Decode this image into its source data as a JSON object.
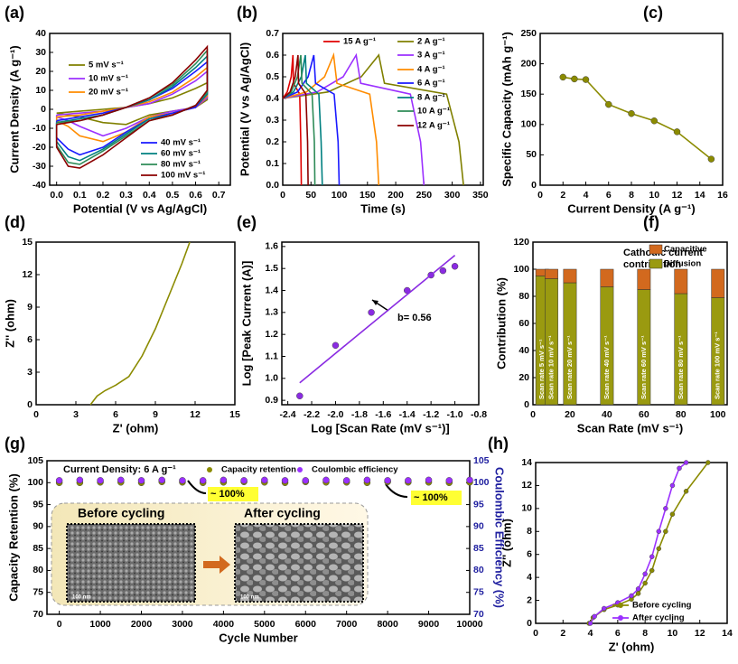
{
  "chart_data": [
    {
      "label": "(a)",
      "type": "line",
      "xlabel": "Potential (V vs Ag/AgCl)",
      "ylabel": "Current Density (A g⁻¹)",
      "xlim": [
        -0.03,
        0.75
      ],
      "xticks": [
        {
          "value": 0,
          "label": "0.0"
        },
        0.1,
        0.2,
        0.3,
        0.4,
        0.5,
        0.6,
        0.7
      ],
      "ylim": [
        -40,
        40
      ],
      "yticks": [
        -40,
        -30,
        -20,
        -10,
        0,
        10,
        20,
        30,
        40
      ],
      "series": [
        {
          "name": "5 mV s⁻¹",
          "color": "#808000",
          "x": [
            0.0,
            0.1,
            0.2,
            0.3,
            0.4,
            0.5,
            0.6,
            0.65,
            0.65,
            0.6,
            0.5,
            0.4,
            0.3,
            0.2,
            0.1,
            0.05,
            0.0,
            0.0
          ],
          "values": [
            -2,
            -1,
            0,
            1,
            3,
            6,
            11,
            14,
            5,
            1,
            -1,
            -3,
            -8,
            -7,
            -4,
            -3,
            -2,
            -2
          ]
        },
        {
          "name": "10 mV s⁻¹",
          "color": "#9b30ff",
          "x": [
            0.0,
            0.1,
            0.2,
            0.3,
            0.4,
            0.5,
            0.6,
            0.65,
            0.65,
            0.6,
            0.5,
            0.4,
            0.3,
            0.2,
            0.1,
            0.05,
            0.0,
            0.0
          ],
          "values": [
            -3,
            -2,
            -1,
            1,
            3,
            8,
            15,
            20,
            6,
            1,
            -1,
            -4,
            -10,
            -14,
            -9,
            -6,
            -4,
            -3
          ]
        },
        {
          "name": "20 mV s⁻¹",
          "color": "#ff8c00",
          "x": [
            0.0,
            0.1,
            0.2,
            0.3,
            0.4,
            0.5,
            0.6,
            0.65,
            0.65,
            0.6,
            0.5,
            0.4,
            0.3,
            0.2,
            0.1,
            0.05,
            0.0,
            0.0
          ],
          "values": [
            -4,
            -3,
            -1,
            1,
            4,
            9,
            17,
            22,
            7,
            1,
            -2,
            -4,
            -12,
            -17,
            -14,
            -9,
            -6,
            -4
          ]
        },
        {
          "name": "40 mV s⁻¹",
          "color": "#1a1aff",
          "x": [
            0.0,
            0.1,
            0.2,
            0.3,
            0.4,
            0.5,
            0.6,
            0.65,
            0.65,
            0.6,
            0.5,
            0.4,
            0.3,
            0.2,
            0.1,
            0.05,
            0.0,
            0.0
          ],
          "values": [
            -6,
            -4,
            -2,
            1,
            5,
            11,
            20,
            25,
            8,
            1,
            -2,
            -5,
            -12,
            -20,
            -24,
            -21,
            -15,
            -6
          ]
        },
        {
          "name": "60 mV s⁻¹",
          "color": "#008080",
          "x": [
            0.0,
            0.1,
            0.2,
            0.3,
            0.4,
            0.5,
            0.6,
            0.65,
            0.65,
            0.6,
            0.5,
            0.4,
            0.3,
            0.2,
            0.1,
            0.05,
            0.0,
            0.0
          ],
          "values": [
            -7,
            -5,
            -3,
            1,
            5,
            12,
            22,
            28,
            8,
            2,
            -3,
            -5,
            -13,
            -21,
            -27,
            -25,
            -17,
            -7
          ]
        },
        {
          "name": "80 mV s⁻¹",
          "color": "#2e8b57",
          "x": [
            0.0,
            0.1,
            0.2,
            0.3,
            0.4,
            0.5,
            0.6,
            0.65,
            0.65,
            0.6,
            0.5,
            0.4,
            0.3,
            0.2,
            0.1,
            0.05,
            0.0,
            0.0
          ],
          "values": [
            -7,
            -6,
            -3,
            1,
            6,
            13,
            24,
            31,
            9,
            2,
            -3,
            -6,
            -14,
            -22,
            -29,
            -28,
            -19,
            -7
          ]
        },
        {
          "name": "100 mV s⁻¹",
          "color": "#8b0000",
          "x": [
            0.0,
            0.1,
            0.2,
            0.3,
            0.4,
            0.5,
            0.6,
            0.65,
            0.65,
            0.6,
            0.5,
            0.4,
            0.3,
            0.2,
            0.1,
            0.05,
            0.0,
            0.0
          ],
          "values": [
            -8,
            -6,
            -3,
            1,
            6,
            14,
            26,
            33,
            10,
            2,
            -3,
            -6,
            -15,
            -24,
            -31,
            -30,
            -20,
            -8
          ]
        }
      ]
    },
    {
      "label": "(b)",
      "type": "line",
      "xlabel": "Time (s)",
      "ylabel": "Potential (V vs Ag/AgCl)",
      "xlim": [
        0,
        355
      ],
      "xticks": [
        0,
        50,
        100,
        150,
        200,
        250,
        300,
        350
      ],
      "ylim": [
        0,
        0.7
      ],
      "yticks": [
        {
          "value": 0,
          "label": "0.0"
        },
        0.1,
        0.2,
        0.3,
        0.4,
        0.5,
        0.6,
        0.7
      ],
      "series": [
        {
          "name": "15 A g⁻¹",
          "color": "#e00000",
          "x": [
            0,
            8,
            15,
            18,
            19,
            30,
            32,
            33
          ],
          "values": [
            0.4,
            0.43,
            0.5,
            0.6,
            0.47,
            0.42,
            0.2,
            0.0
          ]
        },
        {
          "name": "2 A g⁻¹",
          "color": "#808000",
          "x": [
            0,
            80,
            139,
            170,
            180,
            290,
            312,
            320
          ],
          "values": [
            0.4,
            0.43,
            0.5,
            0.6,
            0.47,
            0.42,
            0.2,
            0.0
          ]
        },
        {
          "name": "3 A g⁻¹",
          "color": "#9b30ff",
          "x": [
            0,
            61,
            107,
            130,
            138,
            226,
            244,
            250
          ],
          "values": [
            0.4,
            0.43,
            0.5,
            0.6,
            0.47,
            0.42,
            0.2,
            0.0
          ]
        },
        {
          "name": "4 A g⁻¹",
          "color": "#ff8c00",
          "x": [
            0,
            42,
            74,
            90,
            96,
            154,
            166,
            170
          ],
          "values": [
            0.4,
            0.43,
            0.5,
            0.6,
            0.47,
            0.42,
            0.2,
            0.0
          ]
        },
        {
          "name": "6 A g⁻¹",
          "color": "#1a1aff",
          "x": [
            0,
            26,
            45,
            55,
            58,
            91,
            98,
            100
          ],
          "values": [
            0.4,
            0.43,
            0.5,
            0.6,
            0.47,
            0.42,
            0.2,
            0.0
          ]
        },
        {
          "name": "8 A g⁻¹",
          "color": "#008080",
          "x": [
            0,
            19,
            33,
            40,
            42,
            64,
            68,
            70
          ],
          "values": [
            0.4,
            0.43,
            0.5,
            0.6,
            0.47,
            0.42,
            0.2,
            0.0
          ]
        },
        {
          "name": "10 A g⁻¹",
          "color": "#2e8b57",
          "x": [
            0,
            15,
            26,
            32,
            34,
            52,
            56,
            57
          ],
          "values": [
            0.4,
            0.43,
            0.5,
            0.6,
            0.47,
            0.42,
            0.2,
            0.0
          ]
        },
        {
          "name": "12 A g⁻¹",
          "color": "#8b0000",
          "x": [
            0,
            13,
            22,
            27,
            28,
            41,
            44,
            45
          ],
          "values": [
            0.4,
            0.43,
            0.5,
            0.6,
            0.47,
            0.42,
            0.2,
            0.0
          ]
        }
      ]
    },
    {
      "label": "(c)",
      "type": "line",
      "xlabel": "Current Density (A g⁻¹)",
      "ylabel": "Specific Capacity (mAh g⁻¹)",
      "xlim": [
        0,
        16
      ],
      "xticks": [
        0,
        2,
        4,
        6,
        8,
        10,
        12,
        14,
        16
      ],
      "ylim": [
        0,
        250
      ],
      "yticks": [
        0,
        50,
        100,
        150,
        200,
        250
      ],
      "series": [
        {
          "color": "#8b8b00",
          "mode": "lines+markers",
          "x": [
            2,
            3,
            4,
            6,
            8,
            10,
            12,
            15
          ],
          "values": [
            178,
            175,
            174,
            133,
            118,
            106,
            88,
            43
          ]
        }
      ]
    },
    {
      "label": "(d)",
      "type": "line",
      "xlabel": "Z' (ohm)",
      "ylabel": "Z'' (ohm)",
      "xlim": [
        0,
        15
      ],
      "xticks": [
        0,
        3,
        6,
        9,
        12,
        15
      ],
      "ylim": [
        0,
        15
      ],
      "yticks": [
        0,
        3,
        6,
        9,
        12,
        15
      ],
      "series": [
        {
          "color": "#8b8b00",
          "x": [
            4.1,
            4.6,
            5.2,
            6,
            7,
            8,
            9,
            10,
            11,
            11.6
          ],
          "values": [
            0,
            0.8,
            1.3,
            1.8,
            2.6,
            4.5,
            7,
            10,
            13,
            15
          ]
        }
      ]
    },
    {
      "label": "(e)",
      "type": "scatter",
      "xlabel": "Log [Scan Rate (mV s⁻¹)]",
      "ylabel": "Log [Peak Current (A)]",
      "xlim": [
        -2.45,
        -0.8
      ],
      "xticks": [
        -2.4,
        -2.2,
        {
          "value": -2,
          "label": "-2.0"
        },
        -1.8,
        -1.6,
        -1.4,
        -1.2,
        {
          "value": -1,
          "label": "-1.0"
        },
        -0.8
      ],
      "ylim": [
        0.88,
        1.62
      ],
      "yticks": [
        0.9,
        {
          "value": 1,
          "label": "1.0"
        },
        1.1,
        1.2,
        1.3,
        1.4,
        1.5,
        1.6
      ],
      "annotations": [
        "b= 0.56"
      ],
      "series": [
        {
          "color": "#8a2be2",
          "mode": "markers",
          "x": [
            -2.3,
            -2.0,
            -1.7,
            -1.4,
            -1.2,
            -1.1,
            -1.0
          ],
          "values": [
            0.92,
            1.15,
            1.3,
            1.4,
            1.47,
            1.49,
            1.51
          ]
        },
        {
          "color": "#8a2be2",
          "mode": "lines",
          "x": [
            -2.3,
            -1.0
          ],
          "values": [
            0.98,
            1.56
          ]
        }
      ]
    },
    {
      "label": "(f)",
      "type": "bar",
      "stacked": true,
      "xlabel": "Scan Rate (mV s⁻¹)",
      "ylabel": "Contribution (%)",
      "xlim": [
        0,
        105
      ],
      "xticks": [
        0,
        20,
        40,
        60,
        80,
        100
      ],
      "ylim": [
        0,
        120
      ],
      "yticks": [
        0,
        20,
        40,
        60,
        80,
        100,
        120
      ],
      "annotations": [
        "Cathodic current",
        "contribution"
      ],
      "x": [
        5,
        10,
        20,
        40,
        60,
        80,
        100
      ],
      "categories": [
        "Scan rate 5 mV s⁻¹",
        "Scan rate 10 mV s⁻¹",
        "Scan rate 20 mV s⁻¹",
        "Scan rate 40 mV s⁻¹",
        "Scan rate 60 mV s⁻¹",
        "Scan rate 80 mV s⁻¹",
        "Scan rate 100 mV s⁻¹"
      ],
      "series": [
        {
          "name": "Diffusion",
          "color": "#9a9a10",
          "values": [
            95,
            93,
            90,
            87,
            85,
            82,
            79
          ]
        },
        {
          "name": "Capacitive",
          "color": "#d2691e",
          "values": [
            5,
            7,
            10,
            13,
            15,
            18,
            21
          ]
        }
      ]
    },
    {
      "label": "(g)",
      "type": "line",
      "xlabel": "Cycle Number",
      "ylabel": "Capacity Retention (%)",
      "y2label": "Coulombic Efficiency (%)",
      "xlim": [
        -300,
        10000
      ],
      "xticks": [
        0,
        1000,
        2000,
        3000,
        4000,
        5000,
        6000,
        7000,
        8000,
        9000,
        10000
      ],
      "ylim": [
        70,
        105
      ],
      "yticks": [
        70,
        75,
        80,
        85,
        90,
        95,
        100,
        105
      ],
      "y2lim": [
        70,
        105
      ],
      "y2ticks": [
        70,
        75,
        80,
        85,
        90,
        95,
        100,
        105
      ],
      "annotations": [
        "Current  Density: 6 A g⁻¹",
        "~ 100%",
        "~ 100%",
        "Before cycling",
        "After cycling",
        "100 nm",
        "100 nm"
      ],
      "series": [
        {
          "name": "Capacity retention",
          "color": "#8b8b00",
          "mode": "markers",
          "x": [
            0,
            500,
            1000,
            1500,
            2000,
            2500,
            3000,
            3500,
            4000,
            4500,
            5000,
            5500,
            6000,
            6500,
            7000,
            7500,
            8000,
            8500,
            9000,
            9500,
            10000
          ],
          "values": [
            100,
            100,
            100.1,
            100.1,
            100,
            100.2,
            100.1,
            100,
            100.1,
            100.2,
            100.1,
            100,
            100.2,
            100.1,
            100.1,
            100,
            100.2,
            100.1,
            100.1,
            100,
            100.1
          ]
        },
        {
          "name": "Coulombic efficiency",
          "color": "#9b30ff",
          "mode": "markers",
          "axis": "y2",
          "x": [
            0,
            500,
            1000,
            1500,
            2000,
            2500,
            3000,
            3500,
            4000,
            4500,
            5000,
            5500,
            6000,
            6500,
            7000,
            7500,
            8000,
            8500,
            9000,
            9500,
            10000
          ],
          "values": [
            100.5,
            100.6,
            100.5,
            100.6,
            100.5,
            100.6,
            100.5,
            100.5,
            100.6,
            100.5,
            100.6,
            100.5,
            100.5,
            100.6,
            100.5,
            100.6,
            100.5,
            100.5,
            100.6,
            100.5,
            100.6
          ]
        }
      ]
    },
    {
      "label": "(h)",
      "type": "line",
      "xlabel": "Z' (ohm)",
      "ylabel": "Z'' (ohm)",
      "xlim": [
        0,
        14
      ],
      "xticks": [
        0,
        2,
        4,
        6,
        8,
        10,
        12,
        14
      ],
      "ylim": [
        0,
        14
      ],
      "yticks": [
        0,
        2,
        4,
        6,
        8,
        10,
        12,
        14
      ],
      "series": [
        {
          "name": "Before cycling",
          "color": "#8b8b00",
          "mode": "lines+markers",
          "x": [
            3.9,
            4.2,
            5,
            6,
            7,
            7.5,
            8,
            8.5,
            9,
            9.5,
            10,
            11,
            12.6
          ],
          "values": [
            0,
            0.5,
            1.2,
            1.6,
            2.1,
            2.6,
            3.5,
            4.6,
            6.5,
            8,
            9.5,
            11.5,
            14
          ]
        },
        {
          "name": "After cycling",
          "color": "#9b30ff",
          "mode": "lines+markers",
          "x": [
            4,
            4.3,
            5,
            6,
            7,
            7.5,
            8,
            8.5,
            9,
            9.5,
            10,
            10.5,
            11
          ],
          "values": [
            0,
            0.6,
            1.3,
            1.8,
            2.4,
            3,
            4.3,
            5.8,
            8,
            10,
            12,
            13.5,
            14
          ]
        }
      ]
    }
  ]
}
